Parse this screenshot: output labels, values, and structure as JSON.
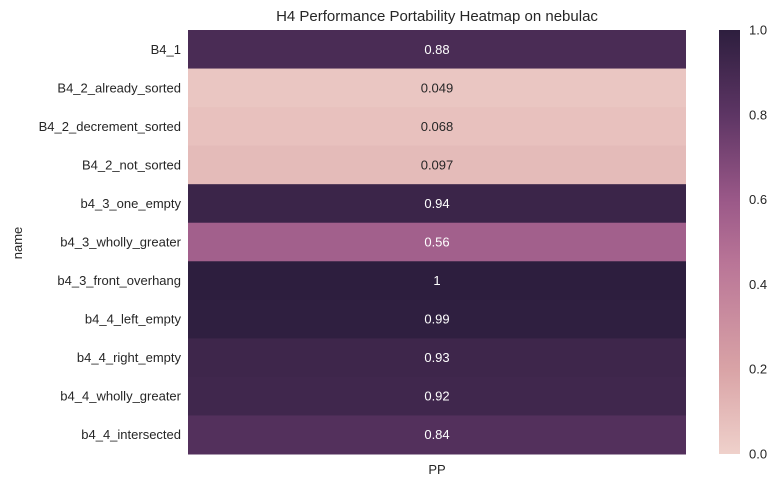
{
  "chart_data": {
    "type": "heatmap",
    "title": "H4 Performance Portability Heatmap on nebulac",
    "ylabel": "name",
    "xlabel": "",
    "columns": [
      "PP"
    ],
    "rows": [
      "B4_1",
      "B4_2_already_sorted",
      "B4_2_decrement_sorted",
      "B4_2_not_sorted",
      "b4_3_one_empty",
      "b4_3_wholly_greater",
      "b4_3_front_overhang",
      "b4_4_left_empty",
      "b4_4_right_empty",
      "b4_4_wholly_greater",
      "b4_4_intersected"
    ],
    "values": [
      0.88,
      0.049,
      0.068,
      0.097,
      0.94,
      0.56,
      1,
      0.99,
      0.93,
      0.92,
      0.84
    ],
    "value_labels": [
      "0.88",
      "0.049",
      "0.068",
      "0.097",
      "0.94",
      "0.56",
      "1",
      "0.99",
      "0.93",
      "0.92",
      "0.84"
    ],
    "colorbar": {
      "range": [
        0.0,
        1.0
      ],
      "ticks": [
        "0.0",
        "0.2",
        "0.4",
        "0.6",
        "0.8",
        "1.0"
      ],
      "colors": {
        "low": "#efd1cb",
        "mid": "#a45c8e",
        "high": "#2d1e3e"
      }
    },
    "grid": false,
    "legend": "colorbar-right"
  }
}
